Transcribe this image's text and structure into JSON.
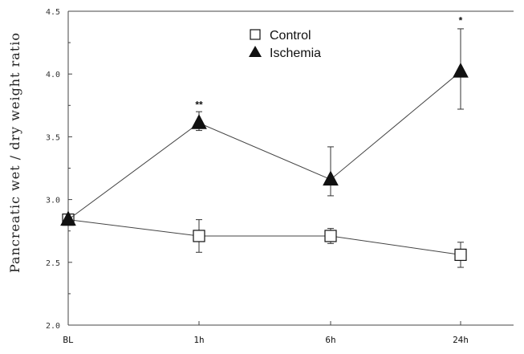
{
  "chart_data": {
    "type": "line",
    "title": "",
    "xlabel": "",
    "ylabel": "Pancreatic wet / dry weight ratio",
    "categories": [
      "BL",
      "1h",
      "6h",
      "24h"
    ],
    "ylim": [
      2.0,
      4.5
    ],
    "yticks": [
      "2.0",
      "2.5",
      "3.0",
      "3.5",
      "4.0",
      "4.5"
    ],
    "grid": false,
    "legend_position": "top-center",
    "series": [
      {
        "name": "Control",
        "marker": "open-square",
        "values": [
          2.84,
          2.71,
          2.71,
          2.56
        ],
        "error_upper": [
          null,
          2.84,
          2.77,
          2.66
        ],
        "error_lower": [
          null,
          2.58,
          2.65,
          2.46
        ]
      },
      {
        "name": "Ischemia",
        "marker": "filled-triangle",
        "values": [
          2.84,
          3.61,
          3.16,
          4.02
        ],
        "error_upper": [
          null,
          3.7,
          3.42,
          4.36
        ],
        "error_lower": [
          null,
          3.55,
          3.03,
          3.72
        ]
      }
    ],
    "annotations": [
      {
        "category": "1h",
        "y": 3.73,
        "text": "**"
      },
      {
        "category": "24h",
        "y": 4.4,
        "text": "*"
      }
    ],
    "colors": {
      "line": "#444444",
      "marker": "#111111"
    }
  }
}
